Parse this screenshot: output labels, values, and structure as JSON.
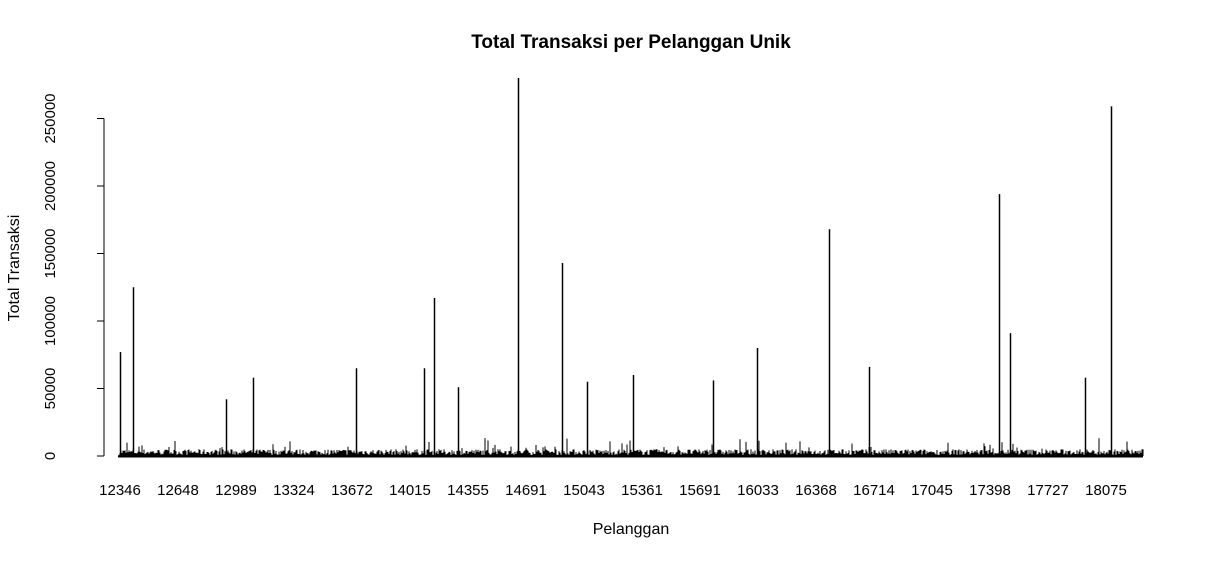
{
  "chart_data": {
    "type": "bar",
    "title": "Total Transaksi per Pelanggan Unik",
    "xlabel": "Pelanggan",
    "ylabel": "Total Transaksi",
    "ylim": [
      0,
      280000
    ],
    "y_ticks": [
      0,
      50000,
      100000,
      150000,
      200000,
      250000
    ],
    "x_tick_labels": [
      "12346",
      "12648",
      "12989",
      "13324",
      "13672",
      "14015",
      "14355",
      "14691",
      "15043",
      "15361",
      "15691",
      "16033",
      "16368",
      "16714",
      "17045",
      "17398",
      "17727",
      "18075"
    ],
    "bar_color": "#000000",
    "grid": false,
    "notable_values": [
      {
        "customer": "12346",
        "value": 77000
      },
      {
        "customer": "12415",
        "value": 125000
      },
      {
        "customer": "12931",
        "value": 42000
      },
      {
        "customer": "13089",
        "value": 58000
      },
      {
        "customer": "13694",
        "value": 65000
      },
      {
        "customer": "14096",
        "value": 65000
      },
      {
        "customer": "14156",
        "value": 117000
      },
      {
        "customer": "14298",
        "value": 51000
      },
      {
        "customer": "14646",
        "value": 280000
      },
      {
        "customer": "14911",
        "value": 143000
      },
      {
        "customer": "15061",
        "value": 55000
      },
      {
        "customer": "15311",
        "value": 60000
      },
      {
        "customer": "15769",
        "value": 56000
      },
      {
        "customer": "16029",
        "value": 80000
      },
      {
        "customer": "16446",
        "value": 168000
      },
      {
        "customer": "16684",
        "value": 66000
      },
      {
        "customer": "17450",
        "value": 194000
      },
      {
        "customer": "17511",
        "value": 91000
      },
      {
        "customer": "17949",
        "value": 58000
      },
      {
        "customer": "18102",
        "value": 259000
      }
    ]
  }
}
